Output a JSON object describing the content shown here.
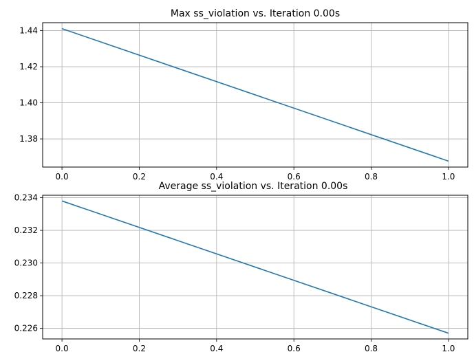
{
  "chart_data": [
    {
      "type": "line",
      "title": "Max ss_violation vs. Iteration 0.00s",
      "xlabel": "",
      "ylabel": "",
      "x": [
        0.0,
        1.0
      ],
      "series": [
        {
          "values": [
            1.4411,
            1.3677
          ]
        }
      ],
      "xlim": [
        -0.05,
        1.05
      ],
      "ylim": [
        1.3644,
        1.4444
      ],
      "xticks": [
        0.0,
        0.2,
        0.4,
        0.6,
        0.8,
        1.0
      ],
      "xtick_labels": [
        "0.0",
        "0.2",
        "0.4",
        "0.6",
        "0.8",
        "1.0"
      ],
      "yticks": [
        1.38,
        1.4,
        1.42,
        1.44
      ],
      "ytick_labels": [
        "1.38",
        "1.40",
        "1.42",
        "1.44"
      ],
      "grid": true,
      "line_color": "#1f77b4"
    },
    {
      "type": "line",
      "title": "Average ss_violation vs. Iteration 0.00s",
      "xlabel": "",
      "ylabel": "",
      "x": [
        0.0,
        1.0
      ],
      "series": [
        {
          "values": [
            0.2338,
            0.2257
          ]
        }
      ],
      "xlim": [
        -0.05,
        1.05
      ],
      "ylim": [
        0.22535,
        0.23415
      ],
      "xticks": [
        0.0,
        0.2,
        0.4,
        0.6,
        0.8,
        1.0
      ],
      "xtick_labels": [
        "0.0",
        "0.2",
        "0.4",
        "0.6",
        "0.8",
        "1.0"
      ],
      "yticks": [
        0.226,
        0.228,
        0.23,
        0.232,
        0.234
      ],
      "ytick_labels": [
        "0.226",
        "0.228",
        "0.230",
        "0.232",
        "0.234"
      ],
      "grid": true,
      "line_color": "#1f77b4"
    }
  ]
}
